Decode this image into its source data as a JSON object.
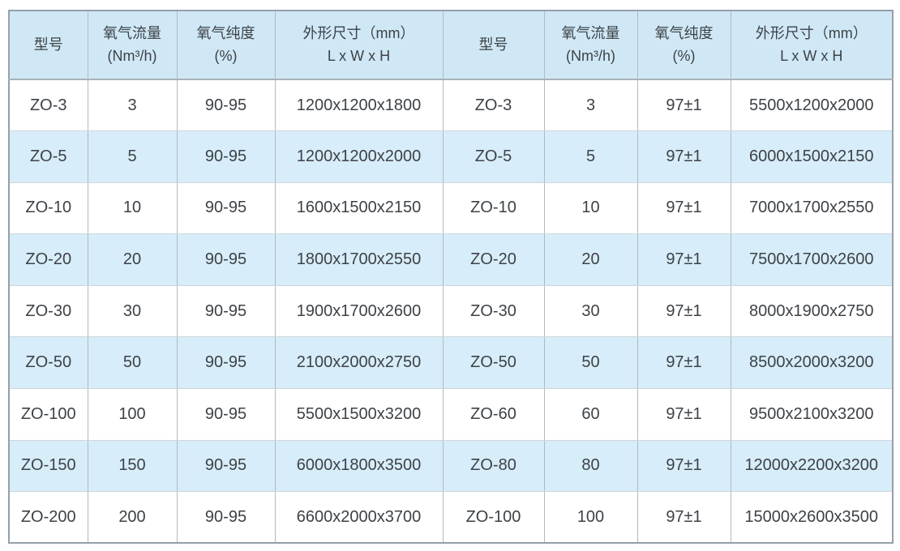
{
  "table": {
    "header": {
      "model": "型号",
      "flow_line1": "氧气流量",
      "flow_line2": "(Nm³/h)",
      "purity_line1": "氧气纯度",
      "purity_line2": "(%)",
      "dims_line1": "外形尺寸（mm）",
      "dims_line2": "L x W x H"
    }
  },
  "chart_data": {
    "type": "table",
    "title": "",
    "column_groups": 2,
    "columns": [
      "型号",
      "氧气流量 (Nm³/h)",
      "氧气纯度 (%)",
      "外形尺寸（mm）L x W x H"
    ],
    "left_rows": [
      [
        "ZO-3",
        "3",
        "90-95",
        "1200x1200x1800"
      ],
      [
        "ZO-5",
        "5",
        "90-95",
        "1200x1200x2000"
      ],
      [
        "ZO-10",
        "10",
        "90-95",
        "1600x1500x2150"
      ],
      [
        "ZO-20",
        "20",
        "90-95",
        "1800x1700x2550"
      ],
      [
        "ZO-30",
        "30",
        "90-95",
        "1900x1700x2600"
      ],
      [
        "ZO-50",
        "50",
        "90-95",
        "2100x2000x2750"
      ],
      [
        "ZO-100",
        "100",
        "90-95",
        "5500x1500x3200"
      ],
      [
        "ZO-150",
        "150",
        "90-95",
        "6000x1800x3500"
      ],
      [
        "ZO-200",
        "200",
        "90-95",
        "6600x2000x3700"
      ]
    ],
    "right_rows": [
      [
        "ZO-3",
        "3",
        "97±1",
        "5500x1200x2000"
      ],
      [
        "ZO-5",
        "5",
        "97±1",
        "6000x1500x2150"
      ],
      [
        "ZO-10",
        "10",
        "97±1",
        "7000x1700x2550"
      ],
      [
        "ZO-20",
        "20",
        "97±1",
        "7500x1700x2600"
      ],
      [
        "ZO-30",
        "30",
        "97±1",
        "8000x1900x2750"
      ],
      [
        "ZO-50",
        "50",
        "97±1",
        "8500x2000x3200"
      ],
      [
        "ZO-60",
        "60",
        "97±1",
        "9500x2100x3200"
      ],
      [
        "ZO-80",
        "80",
        "97±1",
        "12000x2200x3200"
      ],
      [
        "ZO-100",
        "100",
        "97±1",
        "15000x2600x3500"
      ]
    ]
  },
  "colors": {
    "header_bg": "#d0e8f6",
    "row_alt_bg": "#d7edf9",
    "row_bg": "#ffffff",
    "border_outer": "#94a0aa",
    "border_vertical": "#b0bac2",
    "border_horizontal": "#cfd6db",
    "border_header_bottom": "#a6b1b9",
    "text": "#3d4247"
  }
}
